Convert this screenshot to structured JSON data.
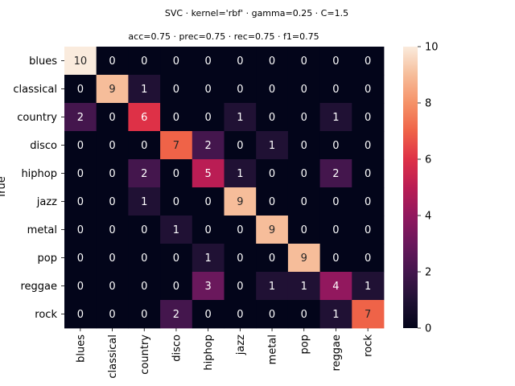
{
  "chart_data": {
    "type": "heatmap",
    "title": "SVC · kernel='rbf' · gamma=0.25 · C=1.5",
    "subtitle": "acc=0.75 · prec=0.75 · rec=0.75 · f1=0.75",
    "xlabel": "",
    "ylabel": "True",
    "categories": [
      "blues",
      "classical",
      "country",
      "disco",
      "hiphop",
      "jazz",
      "metal",
      "pop",
      "reggae",
      "rock"
    ],
    "rows": [
      "blues",
      "classical",
      "country",
      "disco",
      "hiphop",
      "jazz",
      "metal",
      "pop",
      "reggae",
      "rock"
    ],
    "values": [
      [
        10,
        0,
        0,
        0,
        0,
        0,
        0,
        0,
        0,
        0
      ],
      [
        0,
        9,
        1,
        0,
        0,
        0,
        0,
        0,
        0,
        0
      ],
      [
        2,
        0,
        6,
        0,
        0,
        1,
        0,
        0,
        1,
        0
      ],
      [
        0,
        0,
        0,
        7,
        2,
        0,
        1,
        0,
        0,
        0
      ],
      [
        0,
        0,
        2,
        0,
        5,
        1,
        0,
        0,
        2,
        0
      ],
      [
        0,
        0,
        1,
        0,
        0,
        9,
        0,
        0,
        0,
        0
      ],
      [
        0,
        0,
        0,
        1,
        0,
        0,
        9,
        0,
        0,
        0
      ],
      [
        0,
        0,
        0,
        0,
        1,
        0,
        0,
        9,
        0,
        0
      ],
      [
        0,
        0,
        0,
        0,
        3,
        0,
        1,
        1,
        4,
        1
      ],
      [
        0,
        0,
        0,
        2,
        0,
        0,
        0,
        0,
        1,
        7
      ]
    ],
    "vmin": 0,
    "vmax": 10,
    "colorbar_ticks": [
      0,
      2,
      4,
      6,
      8,
      10
    ],
    "colormap": "rocket",
    "annotated": true
  }
}
